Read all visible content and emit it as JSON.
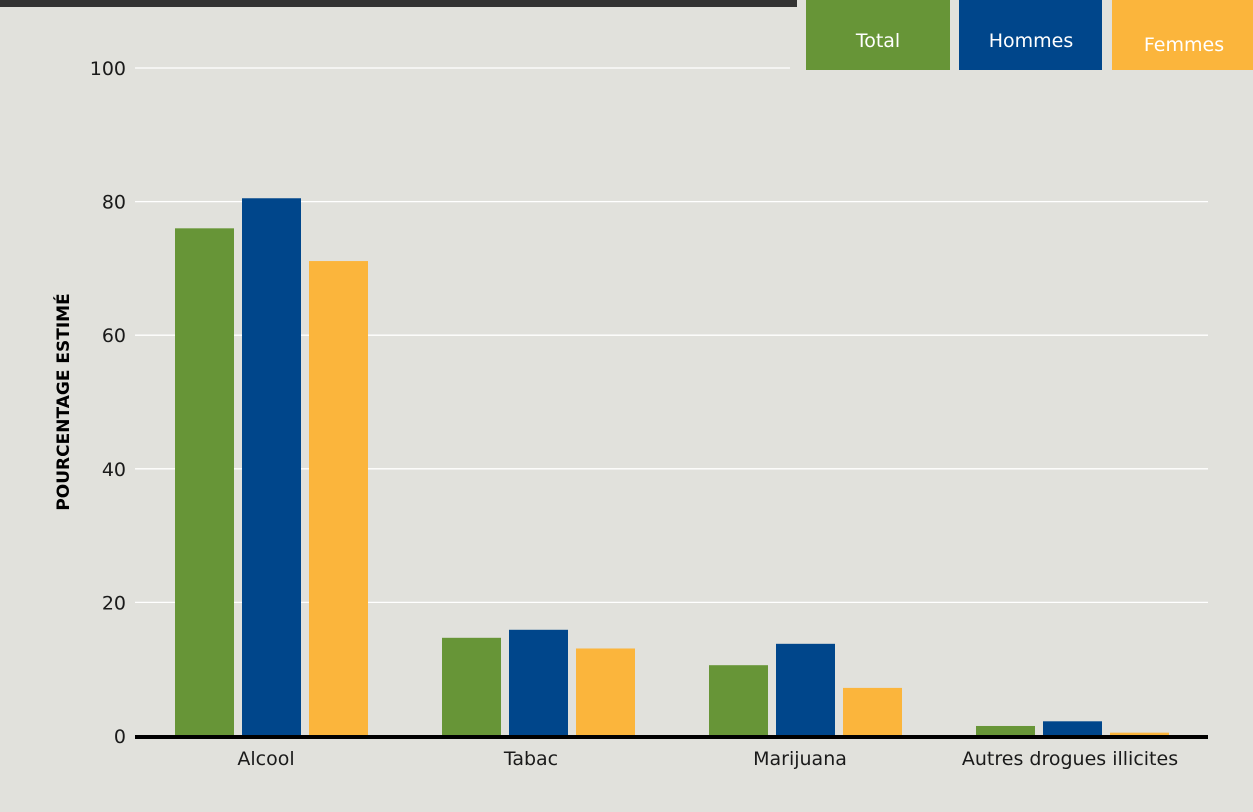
{
  "chart_data": {
    "type": "bar",
    "ylabel": "POURCENTAGE ESTIMÉ",
    "ylim": [
      0,
      100
    ],
    "yticks": [
      0,
      20,
      40,
      60,
      80,
      100
    ],
    "grid": true,
    "legend_position": "top-right",
    "categories": [
      "Alcool",
      "Tabac",
      "Marijuana",
      "Autres drogues illicites"
    ],
    "series": [
      {
        "name": "Total",
        "color": "#679537",
        "values": [
          76.0,
          14.7,
          10.6,
          1.5
        ]
      },
      {
        "name": "Hommes",
        "color": "#00468b",
        "values": [
          80.5,
          15.9,
          13.8,
          2.2
        ]
      },
      {
        "name": "Femmes",
        "color": "#fbb53c",
        "values": [
          71.1,
          13.1,
          7.2,
          0.5
        ]
      }
    ]
  },
  "colors": {
    "background": "#e1e1dc",
    "topbar": "#333333",
    "gridline": "#ffffff",
    "axis": "#000000"
  }
}
